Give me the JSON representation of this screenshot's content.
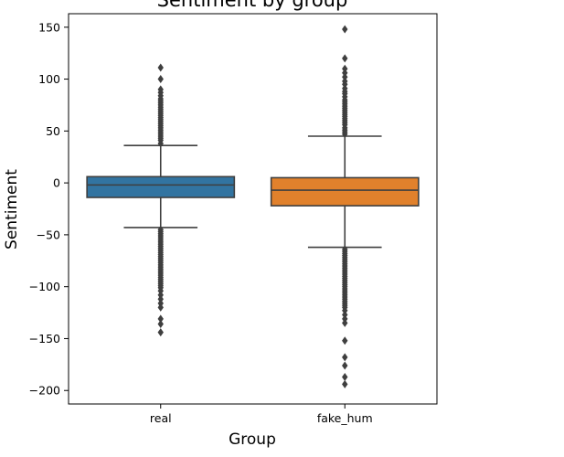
{
  "chart_data": {
    "type": "box",
    "title": "Sentiment by group",
    "xlabel": "Group",
    "ylabel": "Sentiment",
    "ylim": [
      -213,
      163
    ],
    "yticks": [
      150,
      100,
      50,
      0,
      -50,
      -100,
      -150,
      -200
    ],
    "ytick_labels": [
      "150",
      "100",
      "50",
      "0",
      "−50",
      "−100",
      "−150",
      "−200"
    ],
    "grid": false,
    "categories": [
      "real",
      "fake_hum"
    ],
    "colors": {
      "real": "#3274a1",
      "fake_hum": "#e1812c",
      "lines": "#3f3f3f"
    },
    "boxes": [
      {
        "name": "real",
        "whislo": -43,
        "q1": -14,
        "median": -2,
        "q3": 6,
        "whishi": 36,
        "fliers_high": [
          38,
          41,
          43,
          45,
          47,
          49,
          51,
          53,
          55,
          57,
          59,
          61,
          63,
          65,
          67,
          69,
          71,
          73,
          75,
          77,
          79,
          81,
          84,
          87,
          90,
          100,
          111
        ],
        "fliers_low": [
          -45,
          -47,
          -49,
          -51,
          -53,
          -55,
          -57,
          -59,
          -61,
          -63,
          -65,
          -67,
          -69,
          -71,
          -73,
          -75,
          -77,
          -79,
          -81,
          -83,
          -85,
          -87,
          -89,
          -91,
          -93,
          -95,
          -97,
          -99,
          -101,
          -104,
          -108,
          -112,
          -116,
          -120,
          -131,
          -136,
          -144
        ]
      },
      {
        "name": "fake_hum",
        "whislo": -62,
        "q1": -22,
        "median": -7,
        "q3": 5,
        "whishi": 45,
        "fliers_high": [
          47,
          49,
          51,
          53,
          56,
          58,
          60,
          62,
          64,
          66,
          68,
          70,
          72,
          74,
          76,
          78,
          80,
          83,
          86,
          88,
          91,
          95,
          98,
          102,
          106,
          110,
          120,
          148
        ],
        "fliers_low": [
          -64,
          -66,
          -68,
          -70,
          -72,
          -74,
          -76,
          -78,
          -80,
          -82,
          -84,
          -86,
          -88,
          -90,
          -92,
          -94,
          -96,
          -98,
          -100,
          -102,
          -104,
          -106,
          -108,
          -110,
          -112,
          -114,
          -116,
          -118,
          -120,
          -123,
          -127,
          -131,
          -135,
          -152,
          -168,
          -176,
          -187,
          -194
        ]
      }
    ]
  }
}
